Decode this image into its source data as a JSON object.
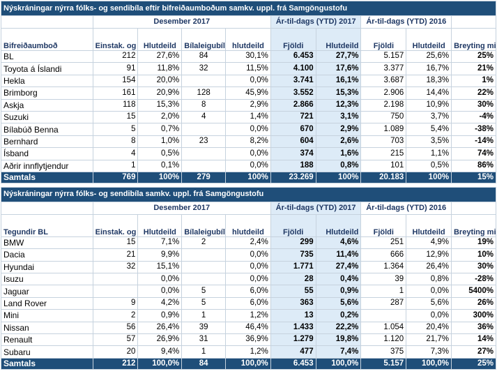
{
  "table1": {
    "title": "Nýskráningar nýrra fólks- og sendibíla eftir bifreiðaumboðum samkv. uppl. frá Samgöngustofu",
    "group_dec": "Desember 2017",
    "group_ytd17": "Ár-til-dags (YTD) 2017",
    "group_ytd16": "Ár-til-dags (YTD) 2016",
    "headers": {
      "name": "Bifreiðaumboð",
      "einstak": "Einstak. og fyrirtæki",
      "hlutdeild": "Hlutdeild",
      "bilaleigubilar": "Bílaleigubílar",
      "hlutdeild_lc": "hlutdeild",
      "fjoldi": "Fjöldi",
      "hlutdeild_ytd": "Hlutdeild",
      "breyting": "Breyting milli ára"
    },
    "rows": [
      {
        "name": "BL",
        "einstak": "212",
        "hlut": "27,6%",
        "bila": "84",
        "bhlut": "30,1%",
        "f17": "6.453",
        "h17": "27,7%",
        "f16": "5.157",
        "h16": "25,6%",
        "br": "25%"
      },
      {
        "name": "Toyota á Íslandi",
        "einstak": "91",
        "hlut": "11,8%",
        "bila": "32",
        "bhlut": "11,5%",
        "f17": "4.100",
        "h17": "17,6%",
        "f16": "3.377",
        "h16": "16,7%",
        "br": "21%"
      },
      {
        "name": "Hekla",
        "einstak": "154",
        "hlut": "20,0%",
        "bila": "",
        "bhlut": "0,0%",
        "f17": "3.741",
        "h17": "16,1%",
        "f16": "3.687",
        "h16": "18,3%",
        "br": "1%"
      },
      {
        "name": "Brimborg",
        "einstak": "161",
        "hlut": "20,9%",
        "bila": "128",
        "bhlut": "45,9%",
        "f17": "3.552",
        "h17": "15,3%",
        "f16": "2.906",
        "h16": "14,4%",
        "br": "22%"
      },
      {
        "name": "Askja",
        "einstak": "118",
        "hlut": "15,3%",
        "bila": "8",
        "bhlut": "2,9%",
        "f17": "2.866",
        "h17": "12,3%",
        "f16": "2.198",
        "h16": "10,9%",
        "br": "30%"
      },
      {
        "name": "Suzuki",
        "einstak": "15",
        "hlut": "2,0%",
        "bila": "4",
        "bhlut": "1,4%",
        "f17": "721",
        "h17": "3,1%",
        "f16": "750",
        "h16": "3,7%",
        "br": "-4%"
      },
      {
        "name": "Bílabúð Benna",
        "einstak": "5",
        "hlut": "0,7%",
        "bila": "",
        "bhlut": "0,0%",
        "f17": "670",
        "h17": "2,9%",
        "f16": "1.089",
        "h16": "5,4%",
        "br": "-38%"
      },
      {
        "name": "Bernhard",
        "einstak": "8",
        "hlut": "1,0%",
        "bila": "23",
        "bhlut": "8,2%",
        "f17": "604",
        "h17": "2,6%",
        "f16": "703",
        "h16": "3,5%",
        "br": "-14%"
      },
      {
        "name": "Ísband",
        "einstak": "4",
        "hlut": "0,5%",
        "bila": "",
        "bhlut": "0,0%",
        "f17": "374",
        "h17": "1,6%",
        "f16": "215",
        "h16": "1,1%",
        "br": "74%"
      },
      {
        "name": "Aðrir innflytjendur",
        "einstak": "1",
        "hlut": "0,1%",
        "bila": "",
        "bhlut": "0,0%",
        "f17": "188",
        "h17": "0,8%",
        "f16": "101",
        "h16": "0,5%",
        "br": "86%"
      }
    ],
    "total": {
      "name": "Samtals",
      "einstak": "769",
      "hlut": "100%",
      "bila": "279",
      "bhlut": "100%",
      "f17": "23.269",
      "h17": "100%",
      "f16": "20.183",
      "h16": "100%",
      "br": "15%"
    }
  },
  "table2": {
    "title": "Nýskráningar nýrra fólks- og sendibíla samkv. uppl. frá Samgöngustofu",
    "group_dec": "Desember 2017",
    "group_ytd17": "Ár-til-dags (YTD) 2017",
    "group_ytd16": "Ár-til-dags (YTD) 2016",
    "headers": {
      "name": "Tegundir BL",
      "einstak": "Einstak. og fyrirtæki",
      "hlutdeild": "Hlutdeild",
      "bilaleigubilar": "Bílaleigubílar",
      "hlutdeild_lc": "hlutdeild",
      "fjoldi": "Fjöldi",
      "hlutdeild_ytd": "Hlutdeild",
      "breyting": "Breyting milli ára"
    },
    "rows": [
      {
        "name": "BMW",
        "einstak": "15",
        "hlut": "7,1%",
        "bila": "2",
        "bhlut": "2,4%",
        "f17": "299",
        "h17": "4,6%",
        "f16": "251",
        "h16": "4,9%",
        "br": "19%"
      },
      {
        "name": "Dacia",
        "einstak": "21",
        "hlut": "9,9%",
        "bila": "",
        "bhlut": "0,0%",
        "f17": "735",
        "h17": "11,4%",
        "f16": "666",
        "h16": "12,9%",
        "br": "10%"
      },
      {
        "name": "Hyundai",
        "einstak": "32",
        "hlut": "15,1%",
        "bila": "",
        "bhlut": "0,0%",
        "f17": "1.771",
        "h17": "27,4%",
        "f16": "1.364",
        "h16": "26,4%",
        "br": "30%"
      },
      {
        "name": "Isuzu",
        "einstak": "",
        "hlut": "0,0%",
        "bila": "",
        "bhlut": "0,0%",
        "f17": "28",
        "h17": "0,4%",
        "f16": "39",
        "h16": "0,8%",
        "br": "-28%"
      },
      {
        "name": "Jaguar",
        "einstak": "",
        "hlut": "0,0%",
        "bila": "5",
        "bhlut": "6,0%",
        "f17": "55",
        "h17": "0,9%",
        "f16": "1",
        "h16": "0,0%",
        "br": "5400%"
      },
      {
        "name": "Land Rover",
        "einstak": "9",
        "hlut": "4,2%",
        "bila": "5",
        "bhlut": "6,0%",
        "f17": "363",
        "h17": "5,6%",
        "f16": "287",
        "h16": "5,6%",
        "br": "26%"
      },
      {
        "name": "Mini",
        "einstak": "2",
        "hlut": "0,9%",
        "bila": "1",
        "bhlut": "1,2%",
        "f17": "13",
        "h17": "0,2%",
        "f16": "",
        "h16": "0,0%",
        "br": "300%"
      },
      {
        "name": "Nissan",
        "einstak": "56",
        "hlut": "26,4%",
        "bila": "39",
        "bhlut": "46,4%",
        "f17": "1.433",
        "h17": "22,2%",
        "f16": "1.054",
        "h16": "20,4%",
        "br": "36%"
      },
      {
        "name": "Renault",
        "einstak": "57",
        "hlut": "26,9%",
        "bila": "31",
        "bhlut": "36,9%",
        "f17": "1.279",
        "h17": "19,8%",
        "f16": "1.120",
        "h16": "21,7%",
        "br": "14%"
      },
      {
        "name": "Subaru",
        "einstak": "20",
        "hlut": "9,4%",
        "bila": "1",
        "bhlut": "1,2%",
        "f17": "477",
        "h17": "7,4%",
        "f16": "375",
        "h16": "7,3%",
        "br": "27%"
      }
    ],
    "total": {
      "name": "Samtals",
      "einstak": "212",
      "hlut": "100,0%",
      "bila": "84",
      "bhlut": "100,0%",
      "f17": "6.453",
      "h17": "100,0%",
      "f16": "5.157",
      "h16": "100,0%",
      "br": "25%"
    }
  }
}
